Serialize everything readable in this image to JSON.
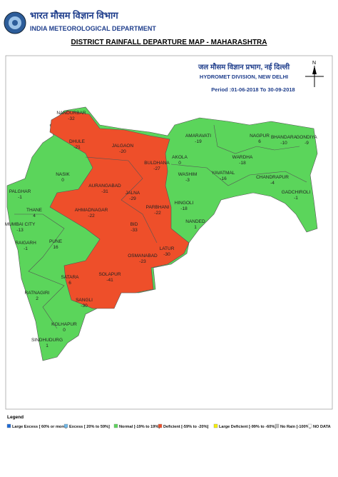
{
  "header": {
    "hindi": "भारत मौसम विज्ञान विभाग",
    "org": "INDIA METEOROLOGICAL DEPARTMENT"
  },
  "title": "DISTRICT RAINFALL DEPARTURE MAP - MAHARASHTRA",
  "info": {
    "hindi": "जल मौसम विज्ञान प्रभाग, नई दिल्ली",
    "division": "HYDROMET DIVISION, NEW DELHI",
    "period": "Period :01-06-2018 To 30-09-2018",
    "north": "N"
  },
  "districts": [
    {
      "name": "NANDURBAR",
      "value": -32,
      "color": "#ee4f2a"
    },
    {
      "name": "DHULE",
      "value": -21,
      "color": "#ee4f2a"
    },
    {
      "name": "JALGAON",
      "value": -20,
      "color": "#ee4f2a"
    },
    {
      "name": "BULDHANA",
      "value": -27,
      "color": "#ee4f2a"
    },
    {
      "name": "AMARAVATI",
      "value": -19,
      "color": "#5bd55b"
    },
    {
      "name": "AKOLA",
      "value": 0,
      "color": "#5bd55b"
    },
    {
      "name": "WASHIM",
      "value": -3,
      "color": "#5bd55b"
    },
    {
      "name": "NAGPUR",
      "value": 6,
      "color": "#5bd55b"
    },
    {
      "name": "BHANDARA",
      "value": -10,
      "color": "#5bd55b"
    },
    {
      "name": "GONDIYA",
      "value": -9,
      "color": "#5bd55b"
    },
    {
      "name": "WARDHA",
      "value": -18,
      "color": "#5bd55b"
    },
    {
      "name": "YAVATMAL",
      "value": -16,
      "color": "#5bd55b"
    },
    {
      "name": "CHANDRAPUR",
      "value": -4,
      "color": "#5bd55b"
    },
    {
      "name": "GADCHIROLI",
      "value": -1,
      "color": "#5bd55b"
    },
    {
      "name": "NASIK",
      "value": 0,
      "color": "#5bd55b"
    },
    {
      "name": "PALGHAR",
      "value": -1,
      "color": "#5bd55b"
    },
    {
      "name": "AURANGABAD",
      "value": -31,
      "color": "#ee4f2a"
    },
    {
      "name": "JALNA",
      "value": -29,
      "color": "#ee4f2a"
    },
    {
      "name": "HINGOLI",
      "value": -18,
      "color": "#5bd55b"
    },
    {
      "name": "PARBHANI",
      "value": -22,
      "color": "#ee4f2a"
    },
    {
      "name": "NANDED",
      "value": 1,
      "color": "#5bd55b"
    },
    {
      "name": "THANE",
      "value": 4,
      "color": "#5bd55b"
    },
    {
      "name": "AHMADNAGAR",
      "value": -22,
      "color": "#ee4f2a"
    },
    {
      "name": "MUMBAI CITY",
      "value": -13,
      "color": "#5bd55b"
    },
    {
      "name": "BID",
      "value": -33,
      "color": "#ee4f2a"
    },
    {
      "name": "RAIGARH",
      "value": -1,
      "color": "#5bd55b"
    },
    {
      "name": "PUNE",
      "value": 16,
      "color": "#5bd55b"
    },
    {
      "name": "LATUR",
      "value": -30,
      "color": "#ee4f2a"
    },
    {
      "name": "OSMANABAD",
      "value": -23,
      "color": "#ee4f2a"
    },
    {
      "name": "SATARA",
      "value": 6,
      "color": "#5bd55b"
    },
    {
      "name": "SOLAPUR",
      "value": -41,
      "color": "#ee4f2a"
    },
    {
      "name": "RATNAGIRI",
      "value": 2,
      "color": "#5bd55b"
    },
    {
      "name": "SANGLI",
      "value": -30,
      "color": "#ee4f2a"
    },
    {
      "name": "KOLHAPUR",
      "value": 0,
      "color": "#5bd55b"
    },
    {
      "name": "SINDHUDURG",
      "value": 1,
      "color": "#5bd55b"
    }
  ],
  "legend": {
    "title": "Legend",
    "items": [
      {
        "label": "Large Excess [ 60% or more]",
        "color": "#1e6bd6"
      },
      {
        "label": "Excess [ 20% to 59%]",
        "color": "#6fb7e8"
      },
      {
        "label": "Normal [-19% to 19%]",
        "color": "#5bd55b"
      },
      {
        "label": "Deficient [-59% to -20%]",
        "color": "#ee4f2a"
      },
      {
        "label": "Large Deficient [-99% to -60%]",
        "color": "#f6f000"
      },
      {
        "label": "No Rain [-100%]",
        "color": "#bbbbbb"
      },
      {
        "label": "NO DATA",
        "color": "#ffffff"
      }
    ]
  }
}
